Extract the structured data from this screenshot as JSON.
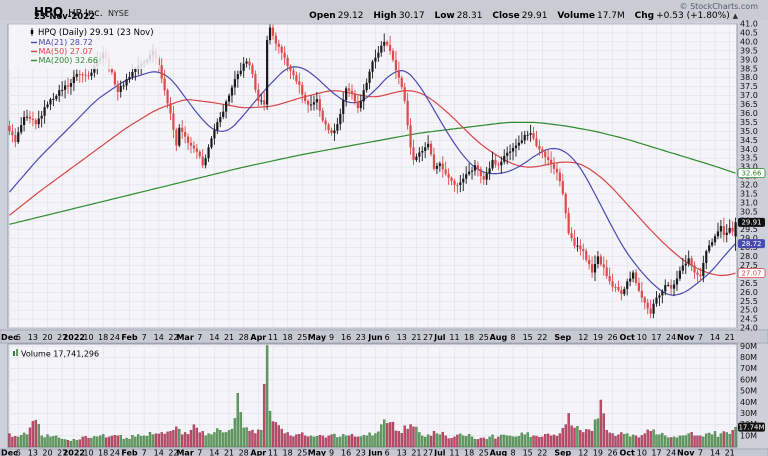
{
  "header": {
    "symbol": "HPQ",
    "company": "HP Inc.",
    "exchange": "NYSE",
    "date": "23-Nov-2022",
    "copyright": "© StockCharts.com",
    "quote": {
      "open_label": "Open",
      "open": "29.12",
      "high_label": "High",
      "high": "30.17",
      "low_label": "Low",
      "low": "28.31",
      "close_label": "Close",
      "close": "29.91",
      "volume_label": "Volume",
      "volume": "17.7M",
      "chg_label": "Chg",
      "chg": "+0.53 (+1.80%)",
      "direction": "▲"
    }
  },
  "legend": {
    "title": "HPQ (Daily) 29.91 (23 Nov)",
    "items": [
      {
        "name": "ma21",
        "label": "MA(21) 28.72",
        "color": "#4a4ab4"
      },
      {
        "name": "ma50",
        "label": "MA(50) 27.07",
        "color": "#d94545"
      },
      {
        "name": "ma200",
        "label": "MA(200) 32.66",
        "color": "#2e8b2e"
      }
    ]
  },
  "volume_panel": {
    "label": "Volume 17,741,296"
  },
  "chart_data": {
    "type": "candlestick",
    "title": "HPQ (Daily)",
    "price_axis": {
      "min": 24.0,
      "max": 41.0,
      "step": 0.5
    },
    "volume_axis": {
      "min": 0,
      "max": 90,
      "step": 10,
      "unit": "M"
    },
    "num_bars": 249,
    "ticks": [
      {
        "i": 0,
        "label": "Dec",
        "bold": true
      },
      {
        "i": 3,
        "label": "6"
      },
      {
        "i": 8,
        "label": "13"
      },
      {
        "i": 13,
        "label": "20"
      },
      {
        "i": 18,
        "label": "27"
      },
      {
        "i": 22,
        "label": "2022",
        "bold": true
      },
      {
        "i": 27,
        "label": "10"
      },
      {
        "i": 32,
        "label": "18"
      },
      {
        "i": 36,
        "label": "24"
      },
      {
        "i": 41,
        "label": "Feb",
        "bold": true
      },
      {
        "i": 46,
        "label": "7"
      },
      {
        "i": 51,
        "label": "14"
      },
      {
        "i": 56,
        "label": "22"
      },
      {
        "i": 60,
        "label": "Mar",
        "bold": true
      },
      {
        "i": 65,
        "label": "7"
      },
      {
        "i": 70,
        "label": "14"
      },
      {
        "i": 75,
        "label": "21"
      },
      {
        "i": 80,
        "label": "28"
      },
      {
        "i": 85,
        "label": "Apr",
        "bold": true
      },
      {
        "i": 90,
        "label": "11"
      },
      {
        "i": 95,
        "label": "18"
      },
      {
        "i": 100,
        "label": "25"
      },
      {
        "i": 105,
        "label": "May",
        "bold": true
      },
      {
        "i": 110,
        "label": "9"
      },
      {
        "i": 115,
        "label": "16"
      },
      {
        "i": 120,
        "label": "23"
      },
      {
        "i": 125,
        "label": "Jun",
        "bold": true
      },
      {
        "i": 129,
        "label": "6"
      },
      {
        "i": 134,
        "label": "13"
      },
      {
        "i": 139,
        "label": "21"
      },
      {
        "i": 143,
        "label": "27"
      },
      {
        "i": 147,
        "label": "Jul",
        "bold": true
      },
      {
        "i": 152,
        "label": "11"
      },
      {
        "i": 157,
        "label": "18"
      },
      {
        "i": 162,
        "label": "25"
      },
      {
        "i": 167,
        "label": "Aug",
        "bold": true
      },
      {
        "i": 172,
        "label": "8"
      },
      {
        "i": 177,
        "label": "15"
      },
      {
        "i": 182,
        "label": "22"
      },
      {
        "i": 189,
        "label": "Sep",
        "bold": true
      },
      {
        "i": 196,
        "label": "12"
      },
      {
        "i": 201,
        "label": "19"
      },
      {
        "i": 206,
        "label": "26"
      },
      {
        "i": 211,
        "label": "Oct",
        "bold": true
      },
      {
        "i": 216,
        "label": "10"
      },
      {
        "i": 221,
        "label": "17"
      },
      {
        "i": 226,
        "label": "24"
      },
      {
        "i": 231,
        "label": "Nov",
        "bold": true
      },
      {
        "i": 236,
        "label": "7"
      },
      {
        "i": 241,
        "label": "14"
      },
      {
        "i": 246,
        "label": "21"
      }
    ],
    "close_anchors": [
      [
        0,
        35.0
      ],
      [
        2,
        34.4
      ],
      [
        5,
        35.8
      ],
      [
        9,
        35.4
      ],
      [
        13,
        36.5
      ],
      [
        17,
        37.3
      ],
      [
        21,
        37.7
      ],
      [
        23,
        38.2
      ],
      [
        27,
        38.1
      ],
      [
        30,
        39.0
      ],
      [
        32,
        39.4
      ],
      [
        35,
        38.3
      ],
      [
        37,
        37.2
      ],
      [
        40,
        37.9
      ],
      [
        43,
        38.5
      ],
      [
        47,
        39.0
      ],
      [
        49,
        39.5
      ],
      [
        51,
        38.7
      ],
      [
        53,
        37.3
      ],
      [
        55,
        36.0
      ],
      [
        57,
        34.2
      ],
      [
        58,
        35.2
      ],
      [
        60,
        34.7
      ],
      [
        62,
        34.2
      ],
      [
        65,
        33.6
      ],
      [
        66,
        33.1
      ],
      [
        69,
        34.6
      ],
      [
        72,
        35.8
      ],
      [
        75,
        37.0
      ],
      [
        78,
        38.2
      ],
      [
        81,
        38.9
      ],
      [
        83,
        38.2
      ],
      [
        85,
        36.7
      ],
      [
        87,
        36.5
      ],
      [
        88,
        40.1
      ],
      [
        89,
        40.8
      ],
      [
        91,
        39.9
      ],
      [
        93,
        39.4
      ],
      [
        96,
        38.4
      ],
      [
        99,
        37.6
      ],
      [
        101,
        36.7
      ],
      [
        103,
        36.5
      ],
      [
        105,
        36.8
      ],
      [
        107,
        35.6
      ],
      [
        110,
        34.9
      ],
      [
        112,
        35.4
      ],
      [
        115,
        37.4
      ],
      [
        117,
        37.1
      ],
      [
        119,
        36.3
      ],
      [
        121,
        37.3
      ],
      [
        124,
        38.9
      ],
      [
        126,
        39.4
      ],
      [
        128,
        40.0
      ],
      [
        130,
        39.5
      ],
      [
        133,
        38.0
      ],
      [
        135,
        36.7
      ],
      [
        137,
        34.1
      ],
      [
        138,
        33.4
      ],
      [
        141,
        33.9
      ],
      [
        143,
        34.3
      ],
      [
        145,
        32.9
      ],
      [
        147,
        33.2
      ],
      [
        150,
        32.4
      ],
      [
        153,
        32.0
      ],
      [
        156,
        32.6
      ],
      [
        159,
        33.1
      ],
      [
        162,
        32.3
      ],
      [
        165,
        33.4
      ],
      [
        167,
        33.1
      ],
      [
        170,
        33.8
      ],
      [
        173,
        34.2
      ],
      [
        176,
        34.8
      ],
      [
        178,
        34.9
      ],
      [
        181,
        34.0
      ],
      [
        184,
        33.4
      ],
      [
        187,
        32.7
      ],
      [
        189,
        31.5
      ],
      [
        191,
        29.3
      ],
      [
        193,
        28.6
      ],
      [
        196,
        28.3
      ],
      [
        199,
        27.1
      ],
      [
        201,
        28.0
      ],
      [
        204,
        26.9
      ],
      [
        206,
        26.3
      ],
      [
        209,
        25.9
      ],
      [
        211,
        26.6
      ],
      [
        213,
        27.1
      ],
      [
        216,
        25.7
      ],
      [
        218,
        25.1
      ],
      [
        219,
        24.8
      ],
      [
        221,
        25.7
      ],
      [
        224,
        26.4
      ],
      [
        226,
        26.2
      ],
      [
        229,
        27.2
      ],
      [
        231,
        27.6
      ],
      [
        232,
        27.9
      ],
      [
        234,
        27.1
      ],
      [
        236,
        26.9
      ],
      [
        238,
        28.3
      ],
      [
        240,
        28.8
      ],
      [
        242,
        29.4
      ],
      [
        243,
        29.7
      ],
      [
        244,
        29.2
      ],
      [
        246,
        29.6
      ],
      [
        247,
        29.4
      ],
      [
        248,
        29.91
      ]
    ],
    "ma21_anchors": [
      [
        0,
        31.6
      ],
      [
        10,
        33.5
      ],
      [
        21,
        35.3
      ],
      [
        30,
        36.8
      ],
      [
        40,
        37.9
      ],
      [
        50,
        38.4
      ],
      [
        55,
        38.0
      ],
      [
        60,
        36.9
      ],
      [
        65,
        35.8
      ],
      [
        70,
        35.0
      ],
      [
        75,
        35.0
      ],
      [
        80,
        35.9
      ],
      [
        85,
        36.9
      ],
      [
        90,
        37.8
      ],
      [
        95,
        38.6
      ],
      [
        100,
        38.6
      ],
      [
        105,
        38.0
      ],
      [
        110,
        37.2
      ],
      [
        115,
        36.6
      ],
      [
        120,
        36.6
      ],
      [
        125,
        37.3
      ],
      [
        130,
        38.2
      ],
      [
        135,
        38.5
      ],
      [
        140,
        37.6
      ],
      [
        145,
        36.2
      ],
      [
        150,
        34.8
      ],
      [
        155,
        33.6
      ],
      [
        160,
        32.8
      ],
      [
        165,
        32.6
      ],
      [
        170,
        32.7
      ],
      [
        175,
        33.1
      ],
      [
        180,
        33.7
      ],
      [
        185,
        34.1
      ],
      [
        190,
        33.9
      ],
      [
        195,
        33.0
      ],
      [
        200,
        31.5
      ],
      [
        205,
        29.9
      ],
      [
        210,
        28.4
      ],
      [
        215,
        27.3
      ],
      [
        220,
        26.4
      ],
      [
        225,
        25.8
      ],
      [
        230,
        25.9
      ],
      [
        235,
        26.5
      ],
      [
        240,
        27.2
      ],
      [
        245,
        28.2
      ],
      [
        248,
        28.72
      ]
    ],
    "ma50_anchors": [
      [
        0,
        30.3
      ],
      [
        10,
        31.6
      ],
      [
        20,
        32.8
      ],
      [
        30,
        34.0
      ],
      [
        40,
        35.2
      ],
      [
        50,
        36.2
      ],
      [
        60,
        36.8
      ],
      [
        70,
        36.6
      ],
      [
        80,
        36.3
      ],
      [
        90,
        36.4
      ],
      [
        100,
        36.9
      ],
      [
        105,
        37.1
      ],
      [
        110,
        37.3
      ],
      [
        115,
        37.2
      ],
      [
        120,
        37.0
      ],
      [
        125,
        36.9
      ],
      [
        130,
        37.1
      ],
      [
        135,
        37.3
      ],
      [
        140,
        37.2
      ],
      [
        145,
        36.7
      ],
      [
        150,
        36.0
      ],
      [
        155,
        35.2
      ],
      [
        160,
        34.4
      ],
      [
        165,
        33.8
      ],
      [
        170,
        33.3
      ],
      [
        175,
        33.0
      ],
      [
        180,
        33.0
      ],
      [
        185,
        33.2
      ],
      [
        190,
        33.3
      ],
      [
        195,
        33.2
      ],
      [
        200,
        32.7
      ],
      [
        205,
        32.0
      ],
      [
        210,
        31.1
      ],
      [
        215,
        30.2
      ],
      [
        220,
        29.3
      ],
      [
        225,
        28.5
      ],
      [
        230,
        27.8
      ],
      [
        235,
        27.3
      ],
      [
        240,
        27.0
      ],
      [
        244,
        26.9
      ],
      [
        248,
        27.07
      ]
    ],
    "ma200_anchors": [
      [
        0,
        29.8
      ],
      [
        20,
        30.6
      ],
      [
        40,
        31.4
      ],
      [
        60,
        32.2
      ],
      [
        80,
        33.0
      ],
      [
        100,
        33.7
      ],
      [
        120,
        34.3
      ],
      [
        140,
        34.9
      ],
      [
        155,
        35.2
      ],
      [
        170,
        35.5
      ],
      [
        180,
        35.5
      ],
      [
        190,
        35.3
      ],
      [
        200,
        35.0
      ],
      [
        210,
        34.6
      ],
      [
        220,
        34.1
      ],
      [
        230,
        33.6
      ],
      [
        240,
        33.1
      ],
      [
        248,
        32.66
      ]
    ],
    "volume_anchors": [
      [
        0,
        12
      ],
      [
        3,
        9
      ],
      [
        6,
        11
      ],
      [
        9,
        24
      ],
      [
        11,
        10
      ],
      [
        14,
        9
      ],
      [
        17,
        8
      ],
      [
        20,
        6
      ],
      [
        22,
        7
      ],
      [
        25,
        9
      ],
      [
        28,
        8
      ],
      [
        31,
        10
      ],
      [
        34,
        9
      ],
      [
        37,
        10
      ],
      [
        40,
        8
      ],
      [
        43,
        9
      ],
      [
        46,
        10
      ],
      [
        49,
        11
      ],
      [
        52,
        13
      ],
      [
        55,
        14
      ],
      [
        57,
        18
      ],
      [
        58,
        16
      ],
      [
        60,
        13
      ],
      [
        62,
        15
      ],
      [
        64,
        17
      ],
      [
        66,
        14
      ],
      [
        68,
        12
      ],
      [
        70,
        13
      ],
      [
        72,
        15
      ],
      [
        74,
        13
      ],
      [
        76,
        16
      ],
      [
        78,
        48
      ],
      [
        80,
        17
      ],
      [
        82,
        14
      ],
      [
        84,
        12
      ],
      [
        86,
        15
      ],
      [
        88,
        95
      ],
      [
        89,
        32
      ],
      [
        91,
        22
      ],
      [
        93,
        16
      ],
      [
        95,
        13
      ],
      [
        98,
        11
      ],
      [
        101,
        10
      ],
      [
        104,
        9
      ],
      [
        107,
        10
      ],
      [
        110,
        11
      ],
      [
        113,
        9
      ],
      [
        116,
        10
      ],
      [
        119,
        9
      ],
      [
        122,
        10
      ],
      [
        125,
        12
      ],
      [
        127,
        20
      ],
      [
        130,
        22
      ],
      [
        133,
        14
      ],
      [
        136,
        16
      ],
      [
        138,
        18
      ],
      [
        140,
        13
      ],
      [
        143,
        11
      ],
      [
        146,
        12
      ],
      [
        149,
        10
      ],
      [
        152,
        9
      ],
      [
        155,
        10
      ],
      [
        158,
        9
      ],
      [
        161,
        8
      ],
      [
        164,
        9
      ],
      [
        167,
        9
      ],
      [
        170,
        10
      ],
      [
        173,
        9
      ],
      [
        176,
        11
      ],
      [
        179,
        10
      ],
      [
        182,
        9
      ],
      [
        185,
        10
      ],
      [
        188,
        12
      ],
      [
        190,
        20
      ],
      [
        191,
        30
      ],
      [
        193,
        17
      ],
      [
        196,
        13
      ],
      [
        199,
        14
      ],
      [
        202,
        42
      ],
      [
        204,
        15
      ],
      [
        206,
        12
      ],
      [
        208,
        11
      ],
      [
        211,
        12
      ],
      [
        214,
        10
      ],
      [
        217,
        12
      ],
      [
        219,
        14
      ],
      [
        221,
        11
      ],
      [
        224,
        10
      ],
      [
        227,
        9
      ],
      [
        230,
        10
      ],
      [
        232,
        12
      ],
      [
        234,
        10
      ],
      [
        237,
        9
      ],
      [
        240,
        11
      ],
      [
        243,
        12
      ],
      [
        245,
        13
      ],
      [
        247,
        15
      ],
      [
        248,
        17.7
      ]
    ],
    "last_bar": {
      "open": 29.12,
      "high": 30.17,
      "low": 28.31,
      "close": 29.91,
      "volume_m": 17.7
    },
    "callouts": [
      {
        "value": 29.91,
        "text": "29.91",
        "style": "close"
      },
      {
        "value": 28.72,
        "text": "28.72",
        "style": "ma21"
      },
      {
        "value": 27.07,
        "text": "27.07",
        "style": "ma50"
      },
      {
        "value": 32.66,
        "text": "32.66",
        "style": "ma200"
      }
    ],
    "volume_callout": "17.74M",
    "colors": {
      "up": "#1a1a1a",
      "down": "#dd4a4a",
      "vol_up": "#649c64",
      "vol_up_edge": "#3c7a3c",
      "vol_down": "#bf4a68",
      "vol_down_edge": "#8f3850",
      "ma21": "#4a4ab4",
      "ma50": "#d94545",
      "ma200": "#2e8b2e",
      "grid": "#dfe0ea",
      "plot_bg": "#f4f4f9",
      "frame": "#9097a6",
      "strip_bg": "#c6c9d2",
      "axis_text": "#111111"
    }
  }
}
